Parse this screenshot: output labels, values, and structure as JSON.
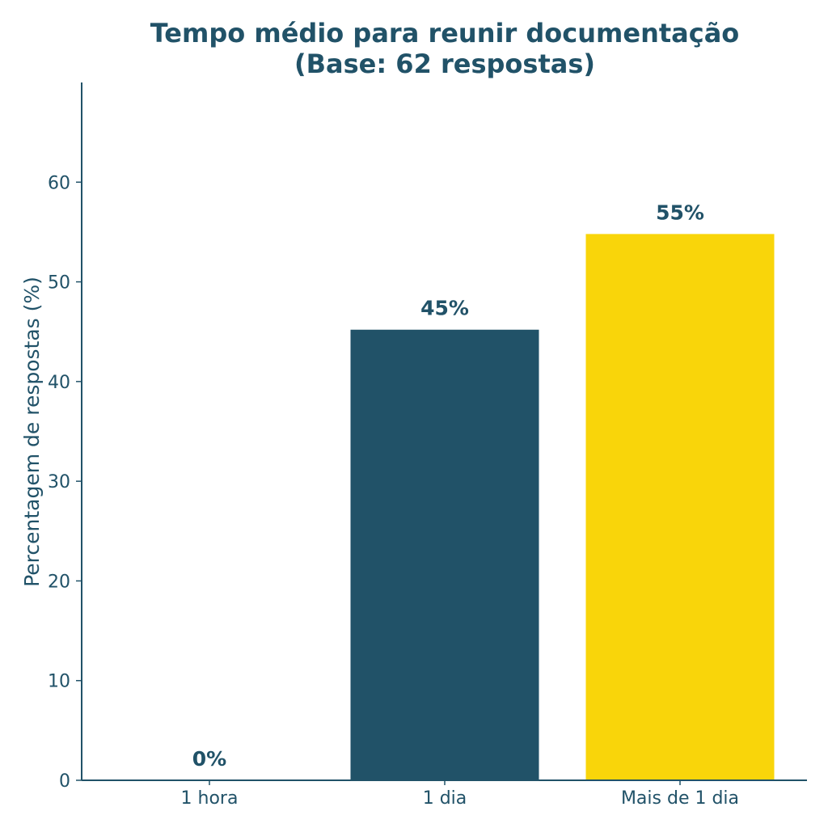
{
  "chart_data": {
    "type": "bar",
    "title_lines": [
      "Tempo médio para reunir documentação",
      "(Base: 62 respostas)"
    ],
    "xlabel": "",
    "ylabel": "Percentagem de respostas (%)",
    "categories": [
      "1 hora",
      "1 dia",
      "Mais de 1 dia"
    ],
    "values": [
      0,
      45.2,
      54.8
    ],
    "data_labels": [
      "0%",
      "45%",
      "55%"
    ],
    "colors": [
      "#215268",
      "#215268",
      "#F9D50A"
    ],
    "ylim": [
      0,
      70
    ],
    "yticks": [
      0,
      10,
      20,
      30,
      40,
      50,
      60
    ],
    "grid": false,
    "legend": "none"
  }
}
